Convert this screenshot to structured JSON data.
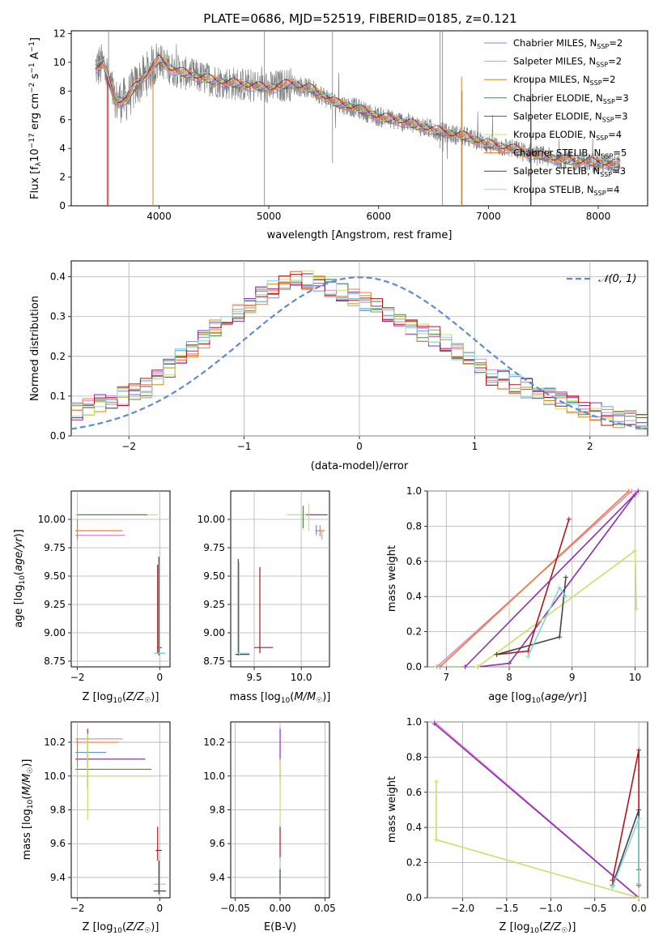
{
  "title": "PLATE=0686, MJD=52519, FIBERID=0185, z=0.121",
  "colors": {
    "cm": "#6a8fce",
    "sm": "#e08ad0",
    "km": "#d08a1a",
    "ce": "#4a8a4a",
    "se": "#8e2fb0",
    "ke": "#c8e06a",
    "cs": "#f07a3a",
    "ss": "#b0161f",
    "ks": "#82d7da",
    "data": "#808080",
    "normal": "#5f8ad6",
    "black": "#444444",
    "grid": "#b0b0b0"
  },
  "legend": [
    {
      "key": "cm",
      "label": "Chabrier MILES, N",
      "sub": "SSP",
      "val": "=2"
    },
    {
      "key": "sm",
      "label": "Salpeter MILES, N",
      "sub": "SSP",
      "val": "=2"
    },
    {
      "key": "km",
      "label": "Kroupa MILES, N",
      "sub": "SSP",
      "val": "=2"
    },
    {
      "key": "ce",
      "label": "Chabrier ELODIE, N",
      "sub": "SSP",
      "val": "=3"
    },
    {
      "key": "se",
      "label": "Salpeter ELODIE, N",
      "sub": "SSP",
      "val": "=3"
    },
    {
      "key": "ke",
      "label": "Kroupa ELODIE, N",
      "sub": "SSP",
      "val": "=4"
    },
    {
      "key": "cs",
      "label": "Chabrier STELIB, N",
      "sub": "SSP",
      "val": "=5"
    },
    {
      "key": "ss",
      "label": "Salpeter STELIB, N",
      "sub": "SSP",
      "val": "=3"
    },
    {
      "key": "ks",
      "label": "Kroupa STELIB, N",
      "sub": "SSP",
      "val": "=4"
    }
  ],
  "chart_data": [
    {
      "type": "line",
      "name": "spectrum",
      "xlabel": "wavelength [Angstrom, rest frame]",
      "ylabel": "Flux [f_λ 10^-17 erg cm^-2 s^-1 A^-1]",
      "xlim": [
        3200,
        8450
      ],
      "ylim": [
        0,
        12.2
      ],
      "xticks": [
        4000,
        5000,
        6000,
        7000,
        8000
      ],
      "yticks": [
        0,
        2,
        4,
        6,
        8,
        10,
        12
      ],
      "continuum": {
        "x": [
          3400,
          3500,
          3600,
          3700,
          3800,
          3900,
          4000,
          4100,
          4200,
          4400,
          4600,
          4800,
          5000,
          5200,
          5400,
          5600,
          5800,
          6000,
          6200,
          6400,
          6600,
          6800,
          7000,
          7200,
          7400,
          7600,
          7800,
          8000,
          8200
        ],
        "y": [
          9.6,
          9.8,
          7.3,
          7.4,
          8.5,
          9.3,
          10.2,
          9.6,
          9.3,
          8.9,
          8.6,
          8.4,
          8.2,
          8.5,
          8.1,
          7.2,
          6.8,
          6.2,
          5.9,
          5.5,
          5.1,
          4.8,
          4.3,
          4.0,
          3.6,
          3.3,
          3.1,
          3.0,
          2.9
        ]
      }
    },
    {
      "type": "line",
      "name": "residual histogram",
      "xlabel": "(data-model)/error",
      "ylabel": "Normed distribution",
      "xlim": [
        -2.5,
        2.5
      ],
      "ylim": [
        0,
        0.44
      ],
      "xticks": [
        -2,
        -1,
        0,
        1,
        2
      ],
      "yticks": [
        0.0,
        0.1,
        0.2,
        0.3,
        0.4
      ],
      "reference": "𝒩(0, 1)",
      "bins": [
        -2.5,
        -2.4,
        -2.3,
        -2.2,
        -2.1,
        -2.0,
        -1.9,
        -1.8,
        -1.7,
        -1.6,
        -1.5,
        -1.4,
        -1.3,
        -1.2,
        -1.1,
        -1.0,
        -0.9,
        -0.8,
        -0.7,
        -0.6,
        -0.5,
        -0.4,
        -0.3,
        -0.2,
        -0.1,
        0.0,
        0.1,
        0.2,
        0.3,
        0.4,
        0.5,
        0.6,
        0.7,
        0.8,
        0.9,
        1.0,
        1.1,
        1.2,
        1.3,
        1.4,
        1.5,
        1.6,
        1.7,
        1.8,
        1.9,
        2.0,
        2.1,
        2.2,
        2.3,
        2.4
      ],
      "values": [
        0.06,
        0.07,
        0.08,
        0.09,
        0.1,
        0.11,
        0.12,
        0.15,
        0.17,
        0.2,
        0.22,
        0.24,
        0.27,
        0.29,
        0.31,
        0.33,
        0.35,
        0.37,
        0.38,
        0.39,
        0.39,
        0.38,
        0.37,
        0.36,
        0.35,
        0.34,
        0.33,
        0.31,
        0.29,
        0.27,
        0.26,
        0.25,
        0.23,
        0.21,
        0.19,
        0.17,
        0.15,
        0.14,
        0.13,
        0.12,
        0.11,
        0.1,
        0.09,
        0.08,
        0.07,
        0.06,
        0.05,
        0.04,
        0.04,
        0.03
      ]
    },
    {
      "type": "scatter",
      "name": "age vs Z",
      "xlabel": "Z [log10(Z/Z☉)]",
      "ylabel": "age [log10(age/yr)]",
      "xlim": [
        -2.15,
        0.25
      ],
      "ylim": [
        8.7,
        10.25
      ],
      "xticks": [
        -2,
        0
      ],
      "yticks": [
        8.75,
        9.0,
        9.25,
        9.5,
        9.75,
        10.0
      ]
    },
    {
      "type": "scatter",
      "name": "age vs mass",
      "xlabel": "mass [log10(M/M☉)]",
      "ylabel": "",
      "xlim": [
        9.25,
        10.3
      ],
      "ylim": [
        8.7,
        10.25
      ],
      "xticks": [
        9.5,
        10.0
      ],
      "yticks": [
        8.75,
        9.0,
        9.25,
        9.5,
        9.75,
        10.0
      ]
    },
    {
      "type": "line",
      "name": "mass weight vs age",
      "xlabel": "age [log10(age/yr)]",
      "ylabel": "mass weight",
      "xlim": [
        6.7,
        10.2
      ],
      "ylim": [
        0,
        1.0
      ],
      "xticks": [
        7,
        8,
        9,
        10
      ],
      "yticks": [
        0.0,
        0.2,
        0.4,
        0.6,
        0.8,
        1.0
      ]
    },
    {
      "type": "scatter",
      "name": "mass vs Z",
      "xlabel": "Z [log10(Z/Z☉)]",
      "ylabel": "mass [log10(M/M☉)]",
      "xlim": [
        -2.15,
        0.25
      ],
      "ylim": [
        9.28,
        10.32
      ],
      "xticks": [
        -2,
        0
      ],
      "yticks": [
        9.4,
        9.6,
        9.8,
        10.0,
        10.2
      ]
    },
    {
      "type": "scatter",
      "name": "mass vs E(B-V)",
      "xlabel": "E(B-V)",
      "ylabel": "",
      "xlim": [
        -0.055,
        0.055
      ],
      "ylim": [
        9.28,
        10.32
      ],
      "xticks": [
        -0.05,
        0.0,
        0.05
      ],
      "yticks": [
        9.4,
        9.6,
        9.8,
        10.0,
        10.2
      ]
    },
    {
      "type": "line",
      "name": "mass weight vs Z",
      "xlabel": "Z [log10(Z/Z☉)]",
      "ylabel": "mass weight",
      "xlim": [
        -2.4,
        0.1
      ],
      "ylim": [
        0,
        1.0
      ],
      "xticks": [
        -2.0,
        -1.5,
        -1.0,
        -0.5,
        0.0
      ],
      "yticks": [
        0.0,
        0.2,
        0.4,
        0.6,
        0.8,
        1.0
      ]
    }
  ],
  "tick_labels": {
    "p1x": [
      "4000",
      "5000",
      "6000",
      "7000",
      "8000"
    ],
    "p1y": [
      "0",
      "2",
      "4",
      "6",
      "8",
      "10",
      "12"
    ],
    "p2x": [
      "−2",
      "−1",
      "0",
      "1",
      "2"
    ],
    "p2y": [
      "0.0",
      "0.1",
      "0.2",
      "0.3",
      "0.4"
    ],
    "p3x": [
      "−2",
      "0"
    ],
    "p3y": [
      "8.75",
      "9.00",
      "9.25",
      "9.50",
      "9.75",
      "10.00"
    ],
    "p4x": [
      "9.5",
      "10.0"
    ],
    "p4y": [
      "8.75",
      "9.00",
      "9.25",
      "9.50",
      "9.75",
      "10.00"
    ],
    "p5x": [
      "7",
      "8",
      "9",
      "10"
    ],
    "p5y": [
      "0.0",
      "0.2",
      "0.4",
      "0.6",
      "0.8",
      "1.0"
    ],
    "p6x": [
      "−2",
      "0"
    ],
    "p6y": [
      "9.4",
      "9.6",
      "9.8",
      "10.0",
      "10.2"
    ],
    "p7x": [
      "−0.05",
      "0.00",
      "0.05"
    ],
    "p7y": [
      "9.4",
      "9.6",
      "9.8",
      "10.0",
      "10.2"
    ],
    "p8x": [
      "−2.0",
      "−1.5",
      "−1.0",
      "−0.5",
      "0.0"
    ],
    "p8y": [
      "0.0",
      "0.2",
      "0.4",
      "0.6",
      "0.8",
      "1.0"
    ]
  },
  "axis_labels": {
    "p1x": "wavelength [Angstrom, rest frame]",
    "p2x": "(data-model)/error",
    "p2y": "Normed distribution",
    "p2legend": "𝒩(0, 1)",
    "p3x": "Z [log",
    "p4x": "mass [log",
    "p5x": "age  [log",
    "p5y": "mass weight",
    "p6x": "Z [log",
    "p7x": "E(B-V)",
    "p8x": "Z [log",
    "p8y": "mass weight"
  }
}
